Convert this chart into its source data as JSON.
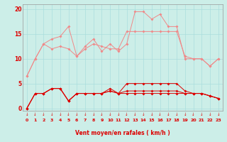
{
  "background_color": "#cceee8",
  "grid_color": "#aadddd",
  "line_color_light": "#f08888",
  "line_color_dark": "#dd0000",
  "xlabel": "Vent moyen/en rafales ( km/h )",
  "xlim": [
    -0.5,
    23.5
  ],
  "ylim": [
    -0.5,
    21
  ],
  "yticks": [
    0,
    5,
    10,
    15,
    20
  ],
  "xticks": [
    0,
    1,
    2,
    3,
    4,
    5,
    6,
    7,
    8,
    9,
    10,
    11,
    12,
    13,
    14,
    15,
    16,
    17,
    18,
    19,
    20,
    21,
    22,
    23
  ],
  "series_light": [
    [
      6.5,
      10.0,
      13.0,
      14.0,
      14.5,
      16.5,
      10.5,
      12.5,
      14.0,
      11.5,
      13.0,
      11.5,
      13.0,
      19.5,
      19.5,
      18.0,
      19.0,
      16.5,
      16.5,
      10.0,
      10.0,
      10.0,
      8.5,
      10.0
    ],
    [
      6.5,
      10.0,
      13.0,
      12.0,
      12.5,
      12.0,
      10.5,
      12.0,
      13.0,
      12.5,
      12.0,
      12.0,
      15.5,
      15.5,
      15.5,
      15.5,
      15.5,
      15.5,
      15.5,
      10.5,
      10.0,
      10.0,
      8.5,
      10.0
    ]
  ],
  "series_dark": [
    [
      0.0,
      3.0,
      3.0,
      4.0,
      4.0,
      1.5,
      3.0,
      3.0,
      3.0,
      3.0,
      4.0,
      3.0,
      5.0,
      5.0,
      5.0,
      5.0,
      5.0,
      5.0,
      5.0,
      3.5,
      3.0,
      3.0,
      2.5,
      2.0
    ],
    [
      0.0,
      3.0,
      3.0,
      4.0,
      4.0,
      1.5,
      3.0,
      3.0,
      3.0,
      3.0,
      3.5,
      3.0,
      3.5,
      3.5,
      3.5,
      3.5,
      3.5,
      3.5,
      3.5,
      3.0,
      3.0,
      3.0,
      2.5,
      2.0
    ],
    [
      0.0,
      3.0,
      3.0,
      4.0,
      4.0,
      1.5,
      3.0,
      3.0,
      3.0,
      3.0,
      3.5,
      3.0,
      3.0,
      3.0,
      3.0,
      3.0,
      3.0,
      3.0,
      3.0,
      3.0,
      3.0,
      3.0,
      2.5,
      2.0
    ]
  ]
}
